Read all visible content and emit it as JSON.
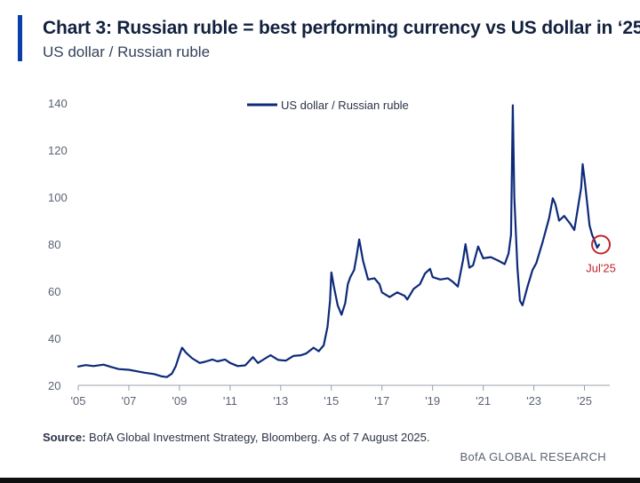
{
  "header": {
    "title": "Chart 3: Russian ruble = best performing currency vs US dollar in ‘25",
    "subtitle": "US dollar / Russian ruble"
  },
  "footer": {
    "source_label": "Source:",
    "source_text": " BofA Global Investment Strategy, Bloomberg. As of 7 August 2025.",
    "branding": "BofA GLOBAL RESEARCH"
  },
  "colors": {
    "series": "#0d2a7a",
    "accent": "#0a3ea8",
    "annotation": "#c0262d",
    "axis": "#9aa0a8"
  },
  "chart_data": {
    "type": "line",
    "xlim": [
      2005,
      2026
    ],
    "ylim": [
      20,
      140
    ],
    "yticks": [
      20,
      40,
      60,
      80,
      100,
      120,
      140
    ],
    "xticks": [
      {
        "x": 2005,
        "label": "'05"
      },
      {
        "x": 2007,
        "label": "'07"
      },
      {
        "x": 2009,
        "label": "'09"
      },
      {
        "x": 2011,
        "label": "'11"
      },
      {
        "x": 2013,
        "label": "'13"
      },
      {
        "x": 2015,
        "label": "'15"
      },
      {
        "x": 2017,
        "label": "'17"
      },
      {
        "x": 2019,
        "label": "'19"
      },
      {
        "x": 2021,
        "label": "'21"
      },
      {
        "x": 2023,
        "label": "'23"
      },
      {
        "x": 2025,
        "label": "'25"
      }
    ],
    "legend": {
      "position": "top-center"
    },
    "grid": false,
    "series": [
      {
        "name": "US dollar / Russian ruble",
        "points": [
          [
            2005.0,
            28.0
          ],
          [
            2005.3,
            28.6
          ],
          [
            2005.6,
            28.2
          ],
          [
            2006.0,
            28.8
          ],
          [
            2006.3,
            27.8
          ],
          [
            2006.6,
            26.9
          ],
          [
            2007.0,
            26.6
          ],
          [
            2007.3,
            26.0
          ],
          [
            2007.6,
            25.4
          ],
          [
            2008.0,
            24.8
          ],
          [
            2008.3,
            23.8
          ],
          [
            2008.5,
            23.5
          ],
          [
            2008.7,
            25.0
          ],
          [
            2008.85,
            28.0
          ],
          [
            2009.0,
            33.0
          ],
          [
            2009.1,
            36.0
          ],
          [
            2009.25,
            34.0
          ],
          [
            2009.5,
            31.5
          ],
          [
            2009.8,
            29.5
          ],
          [
            2010.0,
            30.0
          ],
          [
            2010.3,
            31.0
          ],
          [
            2010.5,
            30.2
          ],
          [
            2010.8,
            31.0
          ],
          [
            2011.0,
            29.5
          ],
          [
            2011.3,
            28.2
          ],
          [
            2011.6,
            28.5
          ],
          [
            2011.9,
            32.0
          ],
          [
            2012.1,
            29.5
          ],
          [
            2012.4,
            31.5
          ],
          [
            2012.6,
            32.8
          ],
          [
            2012.9,
            30.8
          ],
          [
            2013.2,
            30.5
          ],
          [
            2013.5,
            32.5
          ],
          [
            2013.8,
            32.8
          ],
          [
            2014.0,
            33.5
          ],
          [
            2014.3,
            36.0
          ],
          [
            2014.5,
            34.5
          ],
          [
            2014.7,
            37.0
          ],
          [
            2014.85,
            45.0
          ],
          [
            2014.95,
            56.0
          ],
          [
            2015.0,
            68.0
          ],
          [
            2015.1,
            62.0
          ],
          [
            2015.25,
            54.0
          ],
          [
            2015.4,
            50.0
          ],
          [
            2015.55,
            55.0
          ],
          [
            2015.65,
            63.0
          ],
          [
            2015.75,
            66.0
          ],
          [
            2015.9,
            69.0
          ],
          [
            2016.0,
            75.0
          ],
          [
            2016.1,
            82.0
          ],
          [
            2016.25,
            73.0
          ],
          [
            2016.45,
            65.0
          ],
          [
            2016.7,
            65.5
          ],
          [
            2016.9,
            63.0
          ],
          [
            2017.0,
            59.5
          ],
          [
            2017.3,
            57.5
          ],
          [
            2017.6,
            59.5
          ],
          [
            2017.9,
            58.0
          ],
          [
            2018.0,
            56.5
          ],
          [
            2018.25,
            61.0
          ],
          [
            2018.5,
            63.0
          ],
          [
            2018.7,
            67.5
          ],
          [
            2018.9,
            69.5
          ],
          [
            2019.0,
            66.0
          ],
          [
            2019.3,
            65.0
          ],
          [
            2019.6,
            65.5
          ],
          [
            2019.8,
            64.0
          ],
          [
            2020.0,
            62.0
          ],
          [
            2020.2,
            73.0
          ],
          [
            2020.3,
            80.0
          ],
          [
            2020.45,
            70.0
          ],
          [
            2020.6,
            71.0
          ],
          [
            2020.8,
            79.0
          ],
          [
            2021.0,
            74.0
          ],
          [
            2021.3,
            74.5
          ],
          [
            2021.6,
            73.0
          ],
          [
            2021.85,
            71.5
          ],
          [
            2022.0,
            76.0
          ],
          [
            2022.1,
            84.0
          ],
          [
            2022.17,
            139.0
          ],
          [
            2022.23,
            100.0
          ],
          [
            2022.35,
            70.0
          ],
          [
            2022.45,
            56.0
          ],
          [
            2022.55,
            54.0
          ],
          [
            2022.75,
            62.0
          ],
          [
            2022.95,
            69.0
          ],
          [
            2023.1,
            72.0
          ],
          [
            2023.35,
            81.0
          ],
          [
            2023.6,
            91.0
          ],
          [
            2023.75,
            99.5
          ],
          [
            2023.85,
            97.0
          ],
          [
            2024.0,
            90.0
          ],
          [
            2024.2,
            92.0
          ],
          [
            2024.45,
            88.5
          ],
          [
            2024.6,
            86.0
          ],
          [
            2024.75,
            96.0
          ],
          [
            2024.87,
            104.0
          ],
          [
            2024.93,
            114.0
          ],
          [
            2025.0,
            108.0
          ],
          [
            2025.1,
            98.0
          ],
          [
            2025.2,
            88.0
          ],
          [
            2025.3,
            84.0
          ],
          [
            2025.4,
            81.5
          ],
          [
            2025.5,
            78.5
          ],
          [
            2025.58,
            79.8
          ]
        ]
      }
    ],
    "annotation": {
      "x": 2025.58,
      "y": 79.8,
      "label": "Jul'25"
    }
  }
}
